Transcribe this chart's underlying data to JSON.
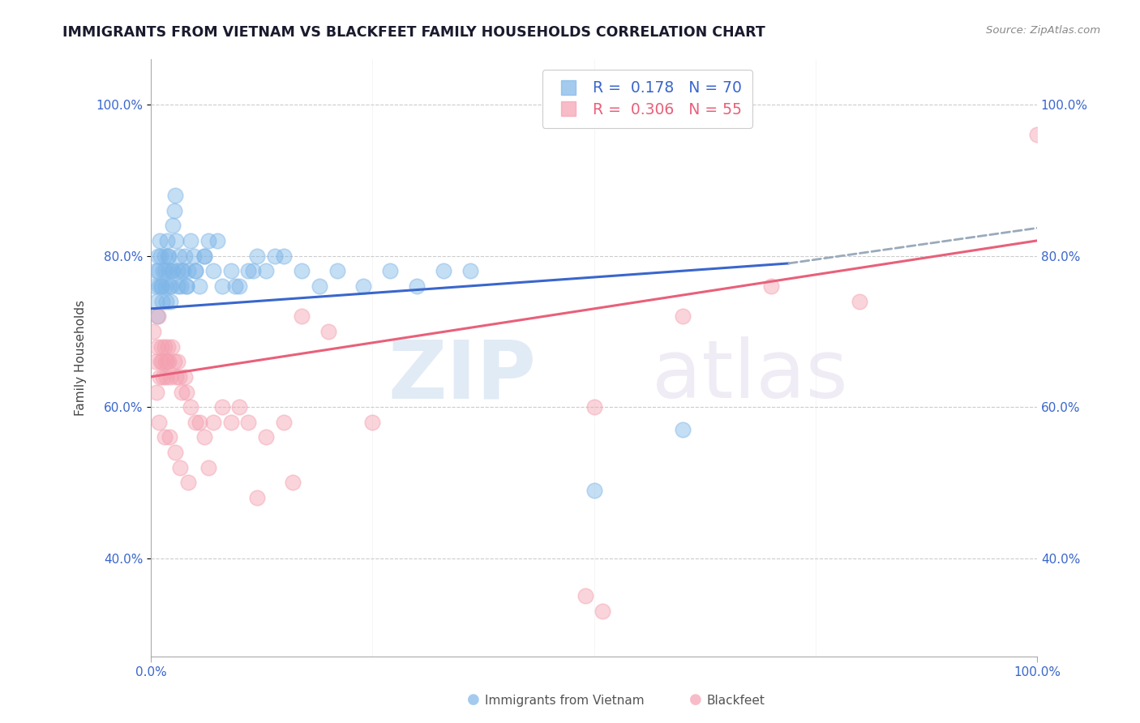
{
  "title": "IMMIGRANTS FROM VIETNAM VS BLACKFEET FAMILY HOUSEHOLDS CORRELATION CHART",
  "source": "Source: ZipAtlas.com",
  "ylabel": "Family Households",
  "ytick_labels": [
    "100.0%",
    "80.0%",
    "60.0%",
    "40.0%"
  ],
  "ytick_values": [
    1.0,
    0.8,
    0.6,
    0.4
  ],
  "xlim": [
    0.0,
    1.0
  ],
  "ylim": [
    0.27,
    1.06
  ],
  "blue_color": "#7EB6E8",
  "pink_color": "#F4A0B0",
  "blue_line_color": "#3A66CC",
  "pink_line_color": "#E8607A",
  "dashed_line_color": "#9AAABB",
  "watermark_zip": "ZIP",
  "watermark_atlas": "atlas",
  "grid_color": "#CCCCCC",
  "title_color": "#1a1a2e",
  "axis_label_color": "#3A66CC",
  "ylabel_color": "#444444",
  "title_fontsize": 12.5,
  "axis_tick_fontsize": 11,
  "ylabel_fontsize": 11,
  "blue_scatter_x": [
    0.004,
    0.006,
    0.007,
    0.008,
    0.009,
    0.01,
    0.011,
    0.012,
    0.013,
    0.014,
    0.015,
    0.016,
    0.017,
    0.018,
    0.019,
    0.02,
    0.021,
    0.022,
    0.023,
    0.024,
    0.025,
    0.026,
    0.027,
    0.028,
    0.03,
    0.032,
    0.034,
    0.036,
    0.038,
    0.04,
    0.042,
    0.045,
    0.048,
    0.05,
    0.055,
    0.06,
    0.065,
    0.07,
    0.08,
    0.09,
    0.1,
    0.11,
    0.12,
    0.13,
    0.15,
    0.17,
    0.19,
    0.21,
    0.24,
    0.27,
    0.3,
    0.33,
    0.36,
    0.005,
    0.008,
    0.012,
    0.016,
    0.02,
    0.025,
    0.03,
    0.035,
    0.04,
    0.05,
    0.06,
    0.075,
    0.095,
    0.115,
    0.14,
    0.5,
    0.6
  ],
  "blue_scatter_y": [
    0.76,
    0.74,
    0.72,
    0.78,
    0.76,
    0.82,
    0.8,
    0.76,
    0.74,
    0.78,
    0.8,
    0.76,
    0.74,
    0.82,
    0.8,
    0.78,
    0.76,
    0.74,
    0.76,
    0.78,
    0.84,
    0.86,
    0.88,
    0.82,
    0.78,
    0.8,
    0.76,
    0.78,
    0.8,
    0.76,
    0.78,
    0.82,
    0.8,
    0.78,
    0.76,
    0.8,
    0.82,
    0.78,
    0.76,
    0.78,
    0.76,
    0.78,
    0.8,
    0.78,
    0.8,
    0.78,
    0.76,
    0.78,
    0.76,
    0.78,
    0.76,
    0.78,
    0.78,
    0.78,
    0.8,
    0.76,
    0.78,
    0.8,
    0.78,
    0.76,
    0.78,
    0.76,
    0.78,
    0.8,
    0.82,
    0.76,
    0.78,
    0.8,
    0.49,
    0.57
  ],
  "pink_scatter_x": [
    0.003,
    0.005,
    0.007,
    0.008,
    0.01,
    0.011,
    0.012,
    0.013,
    0.014,
    0.015,
    0.016,
    0.017,
    0.018,
    0.019,
    0.02,
    0.022,
    0.024,
    0.026,
    0.028,
    0.03,
    0.032,
    0.035,
    0.038,
    0.04,
    0.045,
    0.05,
    0.055,
    0.06,
    0.07,
    0.08,
    0.09,
    0.1,
    0.11,
    0.13,
    0.15,
    0.17,
    0.2,
    0.25,
    0.5,
    0.6,
    0.7,
    0.8,
    0.006,
    0.009,
    0.015,
    0.021,
    0.027,
    0.033,
    0.042,
    0.065,
    0.12,
    0.16,
    1.0,
    0.49,
    0.51
  ],
  "pink_scatter_y": [
    0.7,
    0.66,
    0.68,
    0.72,
    0.64,
    0.66,
    0.68,
    0.66,
    0.64,
    0.68,
    0.66,
    0.64,
    0.66,
    0.68,
    0.66,
    0.64,
    0.68,
    0.66,
    0.64,
    0.66,
    0.64,
    0.62,
    0.64,
    0.62,
    0.6,
    0.58,
    0.58,
    0.56,
    0.58,
    0.6,
    0.58,
    0.6,
    0.58,
    0.56,
    0.58,
    0.72,
    0.7,
    0.58,
    0.6,
    0.72,
    0.76,
    0.74,
    0.62,
    0.58,
    0.56,
    0.56,
    0.54,
    0.52,
    0.5,
    0.52,
    0.48,
    0.5,
    0.96,
    0.35,
    0.33
  ],
  "blue_trend_x": [
    0.0,
    0.72
  ],
  "blue_trend_y": [
    0.73,
    0.79
  ],
  "pink_trend_x": [
    0.0,
    1.0
  ],
  "pink_trend_y": [
    0.64,
    0.82
  ],
  "dashed_trend_x": [
    0.72,
    1.02
  ],
  "dashed_trend_y": [
    0.79,
    0.84
  ],
  "legend_texts": [
    "R =  0.178   N = 70",
    "R =  0.306   N = 55"
  ],
  "legend_blue_text_color": "#3A66CC",
  "legend_pink_text_color": "#E8607A"
}
